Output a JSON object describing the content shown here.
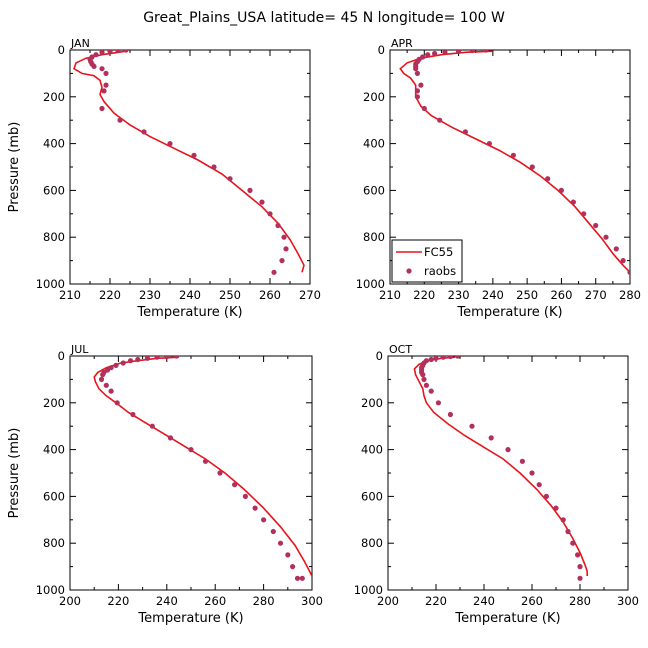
{
  "figure": {
    "title": "Great_Plains_USA  latitude= 45 N longitude= 100 W"
  },
  "legend": {
    "model_label": "FC55",
    "obs_label": "raobs",
    "model_color": "#e8141b",
    "obs_color": "#b3305c"
  },
  "chart_data": [
    {
      "type": "line",
      "panel": "JAN",
      "xlabel": "Temperature (K)",
      "ylabel": "Pressure (mb)",
      "xlim": [
        210,
        270
      ],
      "ylim": [
        1000,
        0
      ],
      "xticks": [
        210,
        220,
        230,
        240,
        250,
        260,
        270
      ],
      "yticks": [
        0,
        200,
        400,
        600,
        800,
        1000
      ],
      "series": [
        {
          "name": "FC55",
          "kind": "line",
          "x": [
            224,
            218,
            214,
            211.5,
            211,
            213,
            216,
            217.5,
            218,
            217.5,
            218.5,
            221,
            225,
            230,
            236,
            242,
            248,
            253,
            258,
            262,
            265,
            267,
            268.5,
            268
          ],
          "y": [
            5,
            20,
            35,
            55,
            80,
            100,
            110,
            130,
            160,
            190,
            220,
            270,
            320,
            370,
            420,
            470,
            530,
            600,
            670,
            740,
            810,
            870,
            920,
            950
          ]
        },
        {
          "name": "raobs",
          "kind": "scatter",
          "x": [
            224,
            222,
            220,
            218,
            216.5,
            215.5,
            215,
            215.2,
            215.5,
            216,
            218,
            219,
            219,
            218.5,
            218,
            222.5,
            228.5,
            235,
            241,
            246,
            250,
            255,
            258,
            260,
            262,
            263.5,
            264,
            263,
            261
          ],
          "y": [
            0,
            2,
            5,
            10,
            20,
            30,
            40,
            50,
            60,
            70,
            80,
            100,
            150,
            175,
            250,
            300,
            350,
            400,
            450,
            500,
            550,
            600,
            650,
            700,
            750,
            800,
            850,
            900,
            950
          ]
        }
      ]
    },
    {
      "type": "line",
      "panel": "APR",
      "xlabel": "Temperature (K)",
      "ylabel": "",
      "xlim": [
        210,
        280
      ],
      "ylim": [
        1000,
        0
      ],
      "xticks": [
        210,
        220,
        230,
        240,
        250,
        260,
        270,
        280
      ],
      "yticks": [
        0,
        200,
        400,
        600,
        800,
        1000
      ],
      "series": [
        {
          "name": "FC55",
          "kind": "line",
          "x": [
            240,
            232,
            225,
            219,
            215,
            213,
            214,
            216,
            217.5,
            217.5,
            219,
            222,
            228,
            235,
            242,
            248,
            254,
            259,
            264,
            268,
            272,
            275,
            278,
            280
          ],
          "y": [
            5,
            10,
            20,
            35,
            55,
            80,
            100,
            120,
            150,
            200,
            240,
            280,
            330,
            380,
            430,
            480,
            540,
            600,
            670,
            740,
            810,
            870,
            920,
            950
          ]
        },
        {
          "name": "raobs",
          "kind": "scatter",
          "x": [
            238,
            234,
            230,
            226,
            223,
            221,
            219.5,
            218.5,
            218,
            217.5,
            217.5,
            217.5,
            218,
            219,
            218,
            218,
            220,
            224.5,
            232,
            239,
            246,
            251.5,
            256,
            260,
            263.5,
            266.5,
            270,
            273,
            276,
            278,
            280
          ],
          "y": [
            0,
            2,
            5,
            10,
            15,
            20,
            30,
            40,
            50,
            60,
            70,
            80,
            100,
            150,
            175,
            200,
            250,
            300,
            350,
            400,
            450,
            500,
            550,
            600,
            650,
            700,
            750,
            800,
            850,
            900,
            950
          ]
        }
      ]
    },
    {
      "type": "line",
      "panel": "JUL",
      "xlabel": "Temperature (K)",
      "ylabel": "Pressure (mb)",
      "xlim": [
        200,
        300
      ],
      "ylim": [
        1000,
        0
      ],
      "xticks": [
        200,
        220,
        240,
        260,
        280,
        300
      ],
      "yticks": [
        0,
        200,
        400,
        600,
        800,
        1000
      ],
      "series": [
        {
          "name": "FC55",
          "kind": "line",
          "x": [
            245,
            236,
            228,
            221,
            215,
            211.5,
            210,
            210.5,
            212,
            215,
            219,
            224,
            232,
            240,
            248,
            256,
            264,
            272,
            280,
            287,
            293,
            297,
            300
          ],
          "y": [
            5,
            10,
            20,
            30,
            50,
            70,
            90,
            110,
            140,
            170,
            200,
            240,
            290,
            340,
            390,
            440,
            500,
            570,
            650,
            730,
            810,
            880,
            940
          ]
        },
        {
          "name": "raobs",
          "kind": "scatter",
          "x": [
            244,
            240,
            236,
            232,
            228,
            225,
            222,
            219,
            217,
            215.5,
            214,
            213.5,
            213,
            215,
            217,
            219.5,
            226,
            234,
            241.5,
            250,
            256,
            262,
            268,
            272.5,
            276.5,
            280,
            284,
            287,
            290,
            292,
            294,
            296
          ],
          "y": [
            0,
            2,
            5,
            10,
            15,
            20,
            30,
            40,
            50,
            60,
            70,
            80,
            100,
            125,
            150,
            200,
            250,
            300,
            350,
            400,
            450,
            500,
            550,
            600,
            650,
            700,
            750,
            800,
            850,
            900,
            950,
            950
          ]
        }
      ]
    },
    {
      "type": "line",
      "panel": "OCT",
      "xlabel": "Temperature (K)",
      "ylabel": "",
      "xlim": [
        200,
        300
      ],
      "ylim": [
        1000,
        0
      ],
      "xticks": [
        200,
        220,
        240,
        260,
        280,
        300
      ],
      "yticks": [
        0,
        200,
        400,
        600,
        800,
        1000
      ],
      "series": [
        {
          "name": "FC55",
          "kind": "line",
          "x": [
            228,
            222,
            217,
            213,
            211,
            211.5,
            213,
            214.5,
            215,
            216,
            219,
            225,
            232,
            240,
            248,
            255,
            262,
            268,
            273,
            277,
            280,
            282,
            283,
            283
          ],
          "y": [
            5,
            10,
            20,
            35,
            55,
            80,
            110,
            140,
            170,
            200,
            240,
            290,
            340,
            390,
            440,
            500,
            570,
            640,
            710,
            780,
            840,
            890,
            920,
            940
          ]
        },
        {
          "name": "raobs",
          "kind": "scatter",
          "x": [
            229,
            226,
            223,
            220,
            218,
            216,
            215,
            214.5,
            214,
            214,
            214,
            214.5,
            215,
            216,
            218,
            221,
            226,
            235,
            243,
            250,
            256,
            260,
            263,
            266,
            270,
            273,
            275,
            277,
            279,
            280,
            280
          ],
          "y": [
            0,
            2,
            5,
            10,
            15,
            20,
            30,
            40,
            50,
            60,
            70,
            80,
            100,
            125,
            150,
            200,
            250,
            300,
            350,
            400,
            450,
            500,
            550,
            600,
            650,
            700,
            750,
            800,
            850,
            900,
            950
          ]
        }
      ]
    }
  ]
}
